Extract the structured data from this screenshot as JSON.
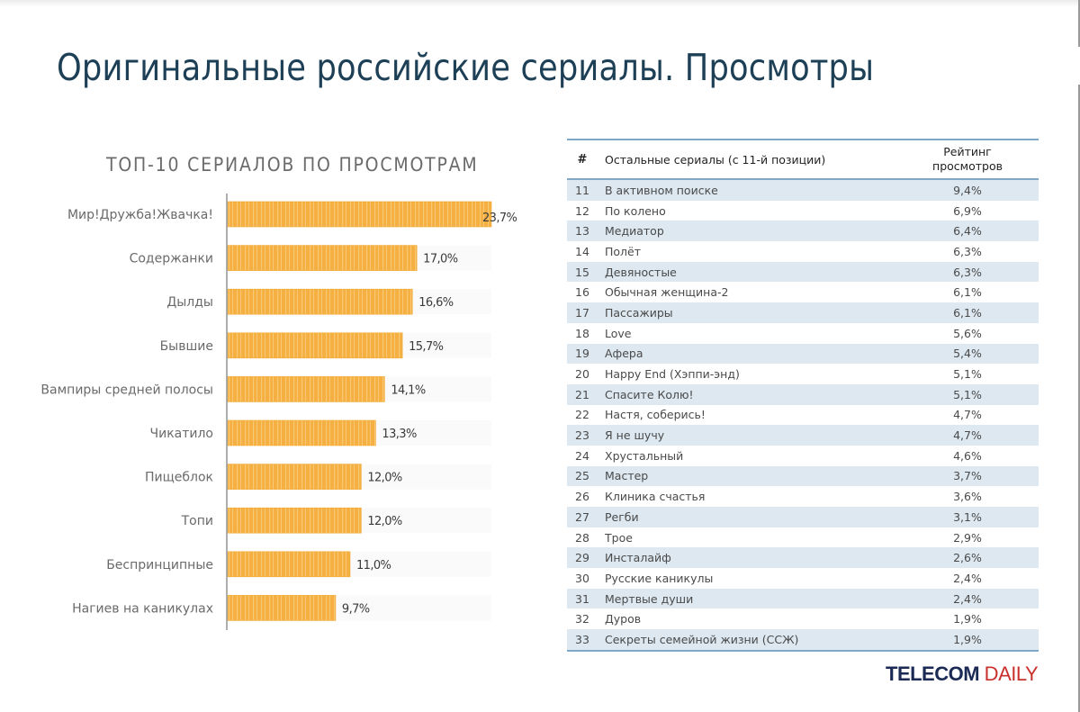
{
  "header": {
    "title": "Оригинальные российские сериалы. Просмотры"
  },
  "chart_data": {
    "type": "bar",
    "orientation": "horizontal",
    "title": "ТОП-10 СЕРИАЛОВ ПО ПРОСМОТРАМ",
    "xlabel": "",
    "ylabel": "",
    "xlim": [
      0,
      24
    ],
    "grid": false,
    "categories": [
      "Мир!Дружба!Жвачка!",
      "Содержанки",
      "Дылды",
      "Бывшие",
      "Вампиры средней полосы",
      "Чикатило",
      "Пищеблок",
      "Топи",
      "Беспринципные",
      "Нагиев на каникулах"
    ],
    "values": [
      23.7,
      17.0,
      16.6,
      15.7,
      14.1,
      13.3,
      12.0,
      12.0,
      11.0,
      9.7
    ],
    "value_labels": [
      "23,7%",
      "17,0%",
      "16,6%",
      "15,7%",
      "14,1%",
      "13,3%",
      "12,0%",
      "12,0%",
      "11,0%",
      "9,7%"
    ],
    "bar_color": "#f5b041"
  },
  "table": {
    "headers": {
      "num": "#",
      "name": "Остальные сериалы (с 11-й позиции)",
      "rating_line1": "Рейтинг",
      "rating_line2": "просмотров"
    },
    "rows": [
      {
        "num": "11",
        "name": "В активном поиске",
        "rating": "9,4%"
      },
      {
        "num": "12",
        "name": "По колено",
        "rating": "6,9%"
      },
      {
        "num": "13",
        "name": "Медиатор",
        "rating": "6,4%"
      },
      {
        "num": "14",
        "name": "Полёт",
        "rating": "6,3%"
      },
      {
        "num": "15",
        "name": "Девяностые",
        "rating": "6,3%"
      },
      {
        "num": "16",
        "name": "Обычная женщина-2",
        "rating": "6,1%"
      },
      {
        "num": "17",
        "name": "Пассажиры",
        "rating": "6,1%"
      },
      {
        "num": "18",
        "name": "Love",
        "rating": "5,6%"
      },
      {
        "num": "19",
        "name": "Афера",
        "rating": "5,4%"
      },
      {
        "num": "20",
        "name": "Happy End (Хэппи-энд)",
        "rating": "5,1%"
      },
      {
        "num": "21",
        "name": "Спасите Колю!",
        "rating": "5,1%"
      },
      {
        "num": "22",
        "name": "Настя, соберись!",
        "rating": "4,7%"
      },
      {
        "num": "23",
        "name": "Я не шучу",
        "rating": "4,7%"
      },
      {
        "num": "24",
        "name": "Хрустальный",
        "rating": "4,6%"
      },
      {
        "num": "25",
        "name": "Мастер",
        "rating": "3,7%"
      },
      {
        "num": "26",
        "name": "Клиника счастья",
        "rating": "3,6%"
      },
      {
        "num": "27",
        "name": "Регби",
        "rating": "3,1%"
      },
      {
        "num": "28",
        "name": "Трое",
        "rating": "2,9%"
      },
      {
        "num": "29",
        "name": "Инсталайф",
        "rating": "2,6%"
      },
      {
        "num": "30",
        "name": "Русские каникулы",
        "rating": "2,4%"
      },
      {
        "num": "31",
        "name": "Мертвые души",
        "rating": "2,4%"
      },
      {
        "num": "32",
        "name": "Дуров",
        "rating": "1,9%"
      },
      {
        "num": "33",
        "name": "Секреты семейной жизни (ССЖ)",
        "rating": "1,9%"
      }
    ]
  },
  "logo": {
    "part1": "TELECOM",
    "part2": " DAILY"
  }
}
